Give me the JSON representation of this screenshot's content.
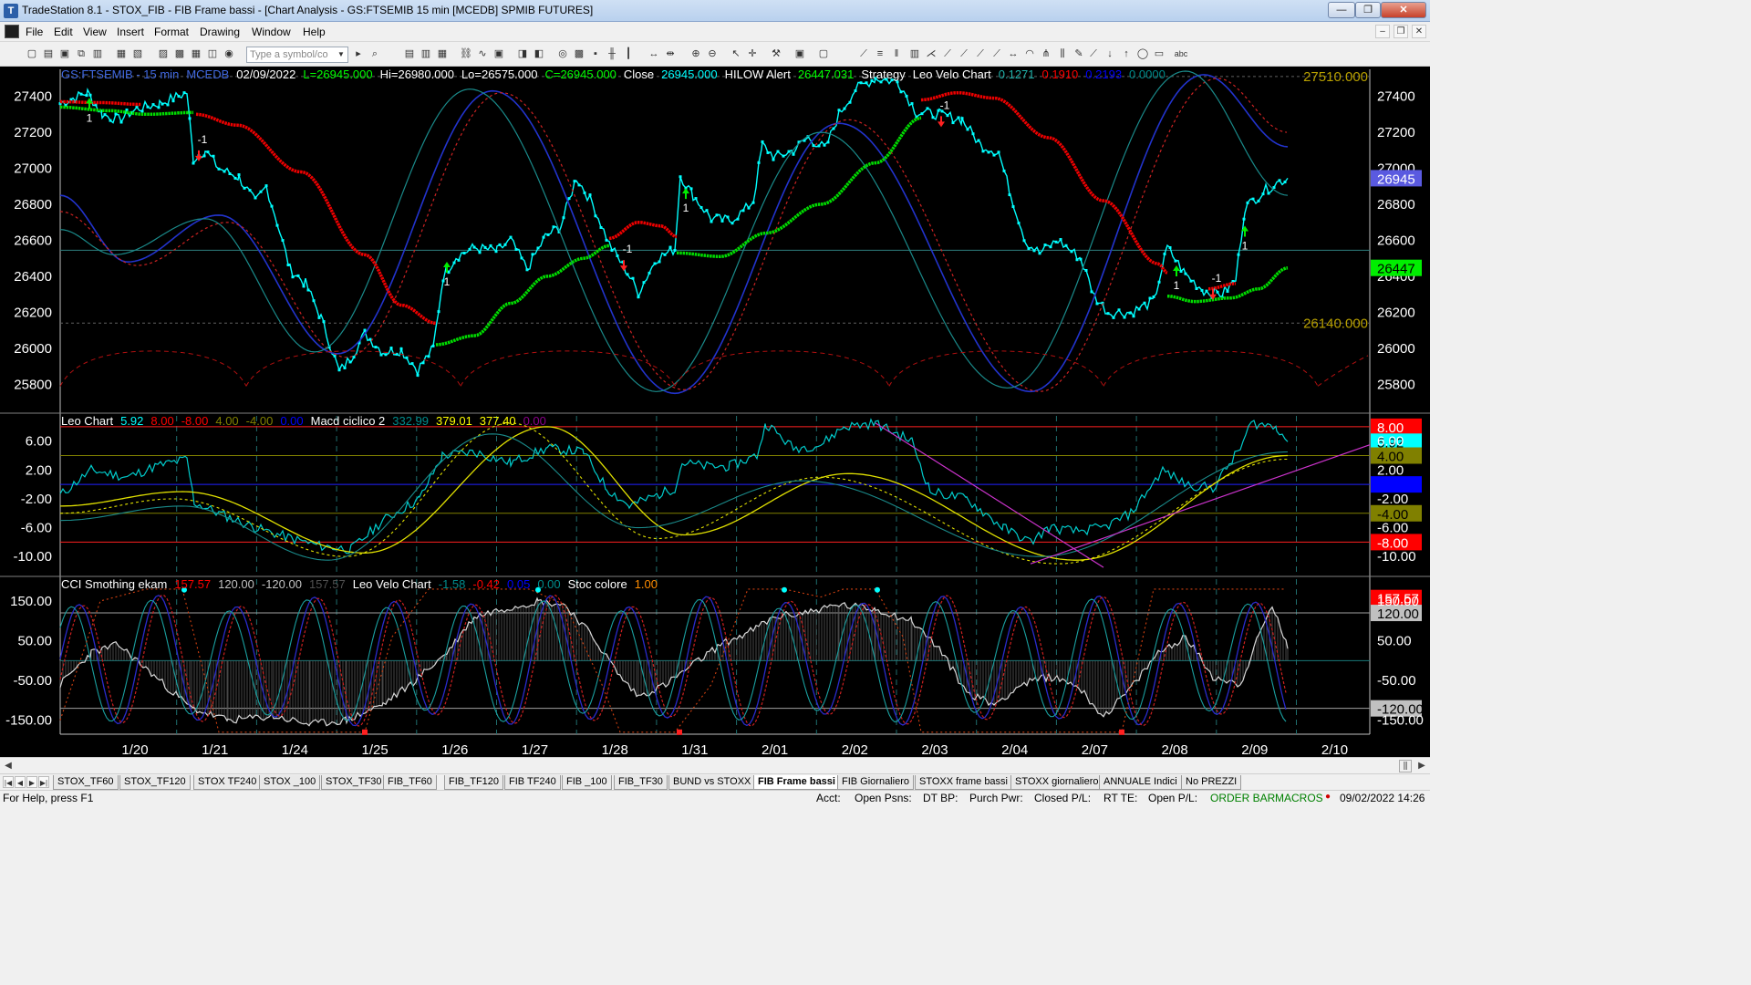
{
  "window": {
    "title": "TradeStation 8.1 - STOX_FIB - FIB Frame bassi - [Chart Analysis - GS:FTSEMIB  15 min  [MCEDB] SPMIB FUTURES]",
    "min_label": "—",
    "max_label": "❐",
    "close_label": "✕"
  },
  "menu": {
    "items": [
      "File",
      "Edit",
      "View",
      "Insert",
      "Format",
      "Drawing",
      "Window",
      "Help"
    ],
    "mdi_min": "–",
    "mdi_restore": "❐",
    "mdi_close": "✕"
  },
  "toolbar": {
    "symbol_placeholder": "Type a symbol/co",
    "dropdown_glyph": "▼"
  },
  "chart": {
    "price_panel": {
      "legend": [
        {
          "text": "GS:FTSEMIB - 15 min",
          "color": "#4169e1"
        },
        {
          "text": "MCEDB",
          "color": "#4169e1"
        },
        {
          "text": "02/09/2022",
          "color": "#ffffff"
        },
        {
          "text": "L=26945.000",
          "color": "#00ff00"
        },
        {
          "text": "Hi=26980.000",
          "color": "#ffffff"
        },
        {
          "text": "Lo=26575.000",
          "color": "#ffffff"
        },
        {
          "text": "C=26945.000",
          "color": "#00ff00"
        },
        {
          "text": "Close",
          "color": "#ffffff"
        },
        {
          "text": "26945.000",
          "color": "#00ffff"
        },
        {
          "text": "HILOW Alert",
          "color": "#ffffff"
        },
        {
          "text": "26447.031",
          "color": "#00ff00"
        },
        {
          "text": "Strategy",
          "color": "#ffffff"
        },
        {
          "text": "Leo Velo Chart",
          "color": "#ffffff"
        },
        {
          "text": "0.1271",
          "color": "#20b2aa"
        },
        {
          "text": "0.1910",
          "color": "#ff0000"
        },
        {
          "text": "0.2193",
          "color": "#0000ff"
        },
        {
          "text": "0.0000",
          "color": "#008b8b"
        }
      ],
      "y_ticks": [
        "27400",
        "27200",
        "27000",
        "26800",
        "26600",
        "26400",
        "26200",
        "26000",
        "25800"
      ],
      "y_min": 25650,
      "y_max": 27550,
      "level_high": "27510.000",
      "level_low": "26140.000",
      "last_close": "26945",
      "alert_value": "26447",
      "strategy_labels": [
        "1",
        "-1",
        "1",
        "-1",
        "1",
        "-1",
        "1",
        "-1",
        "1",
        "-1",
        "1"
      ]
    },
    "macd_panel": {
      "legend": [
        {
          "text": "Leo Chart",
          "color": "#ffffff"
        },
        {
          "text": "5.92",
          "color": "#00ffff"
        },
        {
          "text": "8.00",
          "color": "#ff0000"
        },
        {
          "text": "-8.00",
          "color": "#ff0000"
        },
        {
          "text": "4.00",
          "color": "#808000"
        },
        {
          "text": "-4.00",
          "color": "#808000"
        },
        {
          "text": "0.00",
          "color": "#0000ff"
        },
        {
          "text": "Macd ciclico 2",
          "color": "#ffffff"
        },
        {
          "text": "332.99",
          "color": "#008b8b"
        },
        {
          "text": "379.01",
          "color": "#ffff00"
        },
        {
          "text": "377.40",
          "color": "#ffff00"
        },
        {
          "text": "0.00",
          "color": "#8b008b"
        }
      ],
      "y_ticks": [
        "6.00",
        "2.00",
        "-2.00",
        "-6.00",
        "-10.00"
      ],
      "y_min": -12.5,
      "y_max": 9.5,
      "right_labels": [
        {
          "text": "8.00",
          "bg": "#ff0000",
          "color": "#ffffff"
        },
        {
          "text": "5.92",
          "bg": "#00ffff",
          "color": "#000000"
        },
        {
          "text": "4.00",
          "bg": "#808000",
          "color": "#000000"
        },
        {
          "text": "0.00",
          "bg": "#0000ff",
          "color": "#0000ff"
        },
        {
          "text": "-4.00",
          "bg": "#808000",
          "color": "#000000"
        },
        {
          "text": "-8.00",
          "bg": "#ff0000",
          "color": "#ffffff"
        }
      ]
    },
    "cci_panel": {
      "legend": [
        {
          "text": "CCI Smothing ekam",
          "color": "#ffffff"
        },
        {
          "text": "157.57",
          "color": "#ff0000"
        },
        {
          "text": "120.00",
          "color": "#c0c0c0"
        },
        {
          "text": "-120.00",
          "color": "#c0c0c0"
        },
        {
          "text": "157.57",
          "color": "#505050"
        },
        {
          "text": "Leo Velo Chart",
          "color": "#ffffff"
        },
        {
          "text": "-1.58",
          "color": "#008b8b"
        },
        {
          "text": "-0.42",
          "color": "#ff0000"
        },
        {
          "text": "0.05",
          "color": "#0000ff"
        },
        {
          "text": "0.00",
          "color": "#008b8b"
        },
        {
          "text": "Stoc colore",
          "color": "#ffffff"
        },
        {
          "text": "1.00",
          "color": "#ff8c00"
        }
      ],
      "y_ticks": [
        "150.00",
        "50.00",
        "-50.00",
        "-150.00"
      ],
      "y_min": -185,
      "y_max": 205,
      "right_labels": [
        {
          "text": "157.57",
          "bg": "#ff0000",
          "color": "#ffffff"
        },
        {
          "text": "120.00",
          "bg": "#c0c0c0",
          "color": "#000000"
        },
        {
          "text": "-120.00",
          "bg": "#c0c0c0",
          "color": "#000000"
        }
      ]
    },
    "x_dates": [
      "1/20",
      "1/21",
      "1/24",
      "1/25",
      "1/26",
      "1/27",
      "1/28",
      "1/31",
      "2/01",
      "2/02",
      "2/03",
      "2/04",
      "2/07",
      "2/08",
      "2/09",
      "2/10"
    ]
  },
  "tabs": {
    "nav": [
      "|◀",
      "◀",
      "▶",
      "▶|"
    ],
    "items": [
      "STOX_TF60",
      "STOX_TF120",
      "STOX TF240",
      "STOX _100",
      "STOX_TF30",
      "FIB_TF60",
      "FIB_TF120",
      "FIB TF240",
      "FIB _100",
      "FIB_TF30",
      "BUND vs STOXX",
      "FIB Frame bassi",
      "FIB Giornaliero",
      "STOXX frame bassi",
      "STOXX giornaliero",
      "ANNUALE Indici",
      "No PREZZI"
    ],
    "active": "FIB Frame bassi"
  },
  "status": {
    "help": "For Help, press F1",
    "acct": "Acct:",
    "open_psns": "Open Psns:",
    "dt_bp": "DT BP:",
    "purch_pwr": "Purch Pwr:",
    "closed_pl": "Closed P/L:",
    "rt_te": "RT TE:",
    "open_pl": "Open P/L:",
    "order_bar": "ORDER BAR",
    "macros": "MACROS",
    "datetime": "09/02/2022 14:26"
  },
  "colors": {
    "price": "#00ffff",
    "hilow_up": "#00ff00",
    "hilow_down": "#ff0000",
    "macd_fast": "#ffff00",
    "trendline": "#cc33cc"
  }
}
